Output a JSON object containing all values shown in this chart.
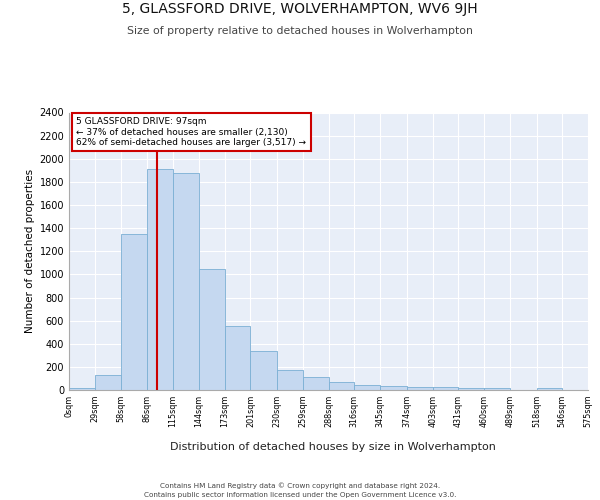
{
  "title": "5, GLASSFORD DRIVE, WOLVERHAMPTON, WV6 9JH",
  "subtitle": "Size of property relative to detached houses in Wolverhampton",
  "xlabel": "Distribution of detached houses by size in Wolverhampton",
  "ylabel": "Number of detached properties",
  "bar_color": "#c5d8f0",
  "bar_edge_color": "#7bafd4",
  "background_color": "#e8eef8",
  "annotation_box_color": "#cc0000",
  "annotation_line_color": "#cc0000",
  "property_line_x": 97,
  "annotation_text_line1": "5 GLASSFORD DRIVE: 97sqm",
  "annotation_text_line2": "← 37% of detached houses are smaller (2,130)",
  "annotation_text_line3": "62% of semi-detached houses are larger (3,517) →",
  "footer_line1": "Contains HM Land Registry data © Crown copyright and database right 2024.",
  "footer_line2": "Contains public sector information licensed under the Open Government Licence v3.0.",
  "bin_labels": [
    "0sqm",
    "29sqm",
    "58sqm",
    "86sqm",
    "115sqm",
    "144sqm",
    "173sqm",
    "201sqm",
    "230sqm",
    "259sqm",
    "288sqm",
    "316sqm",
    "345sqm",
    "374sqm",
    "403sqm",
    "431sqm",
    "460sqm",
    "489sqm",
    "518sqm",
    "546sqm",
    "575sqm"
  ],
  "bin_edges": [
    0,
    29,
    58,
    86,
    115,
    144,
    173,
    201,
    230,
    259,
    288,
    316,
    345,
    374,
    403,
    431,
    460,
    489,
    518,
    546,
    575
  ],
  "bar_heights": [
    15,
    130,
    1350,
    1910,
    1880,
    1050,
    550,
    340,
    175,
    110,
    65,
    40,
    35,
    30,
    25,
    20,
    15,
    0,
    20,
    0,
    15
  ],
  "ylim": [
    0,
    2400
  ],
  "yticks": [
    0,
    200,
    400,
    600,
    800,
    1000,
    1200,
    1400,
    1600,
    1800,
    2000,
    2200,
    2400
  ]
}
